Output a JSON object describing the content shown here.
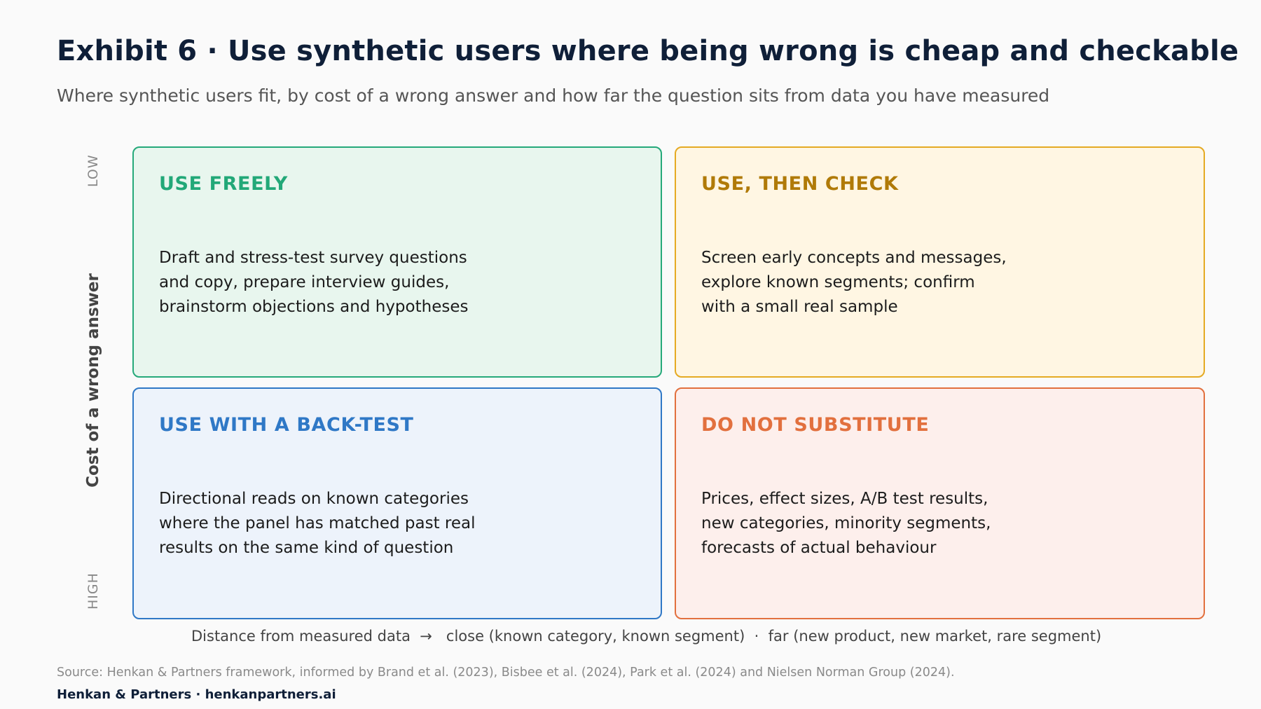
{
  "header": {
    "title": "Exhibit 6 · Use synthetic users where being wrong is cheap and checkable",
    "subtitle": "Where synthetic users fit, by cost of a wrong answer and how far the question sits from data you have measured"
  },
  "y_axis": {
    "title": "Cost of a wrong answer",
    "low_label": "LOW",
    "high_label": "HIGH"
  },
  "x_axis": {
    "label": "Distance from measured data  →   close (known category, known segment)  ·  far (new product, new market, rare segment)"
  },
  "quadrants": {
    "top_left": {
      "heading": "USE FREELY",
      "lines": [
        "Draft and stress-test survey questions",
        "and copy, prepare interview guides,",
        "brainstorm objections and hypotheses"
      ],
      "color": "#25a97a"
    },
    "top_right": {
      "heading": "USE, THEN CHECK",
      "lines": [
        "Screen early concepts and messages,",
        "explore known segments; confirm",
        "with a small real sample"
      ],
      "color": "#e5aa23"
    },
    "bottom_left": {
      "heading": "USE WITH A BACK-TEST",
      "lines": [
        "Directional reads on known categories",
        "where the panel has matched past real",
        "results on the same kind of question"
      ],
      "color": "#2f78c6"
    },
    "bottom_right": {
      "heading": "DO NOT SUBSTITUTE",
      "lines": [
        "Prices, effect sizes, A/B test results,",
        "new categories, minority segments,",
        "forecasts of actual behaviour"
      ],
      "color": "#e2703e"
    }
  },
  "footer": {
    "source": "Source: Henkan & Partners framework, informed by Brand et al. (2023), Bisbee et al. (2024), Park et al. (2024) and Nielsen Norman Group (2024).",
    "brand": "Henkan & Partners · henkanpartners.ai"
  }
}
